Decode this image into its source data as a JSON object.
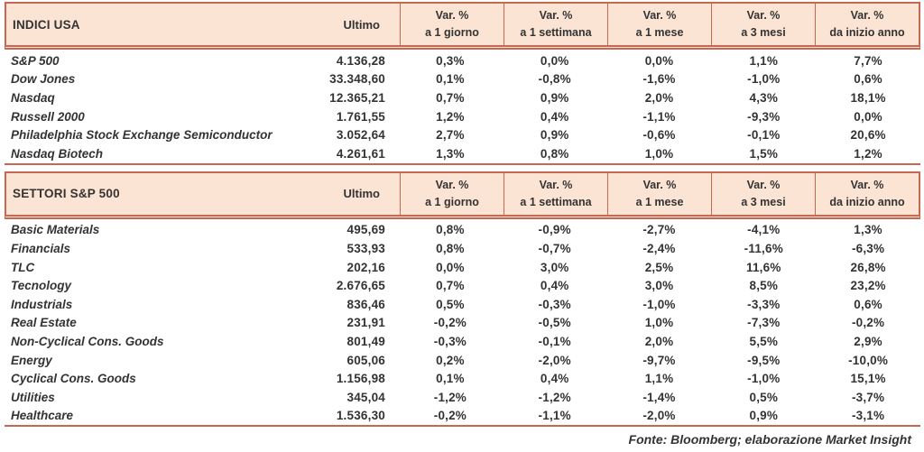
{
  "colors": {
    "header_bg": "#fce4d4",
    "border": "#c66852",
    "text": "#333333"
  },
  "footer": {
    "source_label": "Fonte: Bloomberg; elaborazione Market Insight"
  },
  "tables": [
    {
      "title": "INDICI USA",
      "ultimo_label": "Ultimo",
      "var_cols": [
        {
          "line1": "Var. %",
          "line2": "a 1 giorno"
        },
        {
          "line1": "Var. %",
          "line2": "a 1 settimana"
        },
        {
          "line1": "Var. %",
          "line2": "a 1 mese"
        },
        {
          "line1": "Var. %",
          "line2": "a 3 mesi"
        },
        {
          "line1": "Var. %",
          "line2": "da inizio anno"
        }
      ],
      "rows": [
        {
          "name": "S&P 500",
          "ultimo": "4.136,28",
          "vars": [
            "0,3%",
            "0,0%",
            "0,0%",
            "1,1%",
            "7,7%"
          ]
        },
        {
          "name": "Dow Jones",
          "ultimo": "33.348,60",
          "vars": [
            "0,1%",
            "-0,8%",
            "-1,6%",
            "-1,0%",
            "0,6%"
          ]
        },
        {
          "name": "Nasdaq",
          "ultimo": "12.365,21",
          "vars": [
            "0,7%",
            "0,9%",
            "2,0%",
            "4,3%",
            "18,1%"
          ]
        },
        {
          "name": "Russell 2000",
          "ultimo": "1.761,55",
          "vars": [
            "1,2%",
            "0,4%",
            "-1,1%",
            "-9,3%",
            "0,0%"
          ]
        },
        {
          "name": "Philadelphia Stock Exchange Semiconductor",
          "ultimo": "3.052,64",
          "vars": [
            "2,7%",
            "0,9%",
            "-0,6%",
            "-0,1%",
            "20,6%"
          ]
        },
        {
          "name": "Nasdaq Biotech",
          "ultimo": "4.261,61",
          "vars": [
            "1,3%",
            "0,8%",
            "1,0%",
            "1,5%",
            "1,2%"
          ]
        }
      ]
    },
    {
      "title": "SETTORI S&P 500",
      "ultimo_label": "Ultimo",
      "var_cols": [
        {
          "line1": "Var. %",
          "line2": "a 1 giorno"
        },
        {
          "line1": "Var. %",
          "line2": "a 1 settimana"
        },
        {
          "line1": "Var. %",
          "line2": "a 1 mese"
        },
        {
          "line1": "Var. %",
          "line2": "a 3 mesi"
        },
        {
          "line1": "Var. %",
          "line2": "da inizio anno"
        }
      ],
      "rows": [
        {
          "name": "Basic Materials",
          "ultimo": "495,69",
          "vars": [
            "0,8%",
            "-0,9%",
            "-2,7%",
            "-4,1%",
            "1,3%"
          ]
        },
        {
          "name": "Financials",
          "ultimo": "533,93",
          "vars": [
            "0,8%",
            "-0,7%",
            "-2,4%",
            "-11,6%",
            "-6,3%"
          ]
        },
        {
          "name": "TLC",
          "ultimo": "202,16",
          "vars": [
            "0,0%",
            "3,0%",
            "2,5%",
            "11,6%",
            "26,8%"
          ]
        },
        {
          "name": "Tecnology",
          "ultimo": "2.676,65",
          "vars": [
            "0,7%",
            "0,4%",
            "3,0%",
            "8,5%",
            "23,2%"
          ]
        },
        {
          "name": "Industrials",
          "ultimo": "836,46",
          "vars": [
            "0,5%",
            "-0,3%",
            "-1,0%",
            "-3,3%",
            "0,6%"
          ]
        },
        {
          "name": "Real Estate",
          "ultimo": "231,91",
          "vars": [
            "-0,2%",
            "-0,5%",
            "1,0%",
            "-7,3%",
            "-0,2%"
          ]
        },
        {
          "name": "Non-Cyclical Cons. Goods",
          "ultimo": "801,49",
          "vars": [
            "-0,3%",
            "-0,1%",
            "2,0%",
            "5,5%",
            "2,9%"
          ]
        },
        {
          "name": "Energy",
          "ultimo": "605,06",
          "vars": [
            "0,2%",
            "-2,0%",
            "-9,7%",
            "-9,5%",
            "-10,0%"
          ]
        },
        {
          "name": "Cyclical Cons. Goods",
          "ultimo": "1.156,98",
          "vars": [
            "0,1%",
            "0,4%",
            "1,1%",
            "-1,0%",
            "15,1%"
          ]
        },
        {
          "name": "Utilities",
          "ultimo": "345,04",
          "vars": [
            "-1,2%",
            "-1,2%",
            "-1,4%",
            "0,5%",
            "-3,7%"
          ]
        },
        {
          "name": "Healthcare",
          "ultimo": "1.536,30",
          "vars": [
            "-0,2%",
            "-1,1%",
            "-2,0%",
            "0,9%",
            "-3,1%"
          ]
        }
      ]
    }
  ]
}
